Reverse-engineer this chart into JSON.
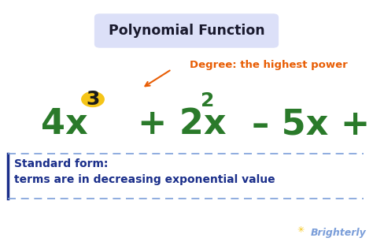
{
  "bg_color": "#ffffff",
  "title_box_color": "#dce0f8",
  "title_text": "Polynomial Function",
  "title_color": "#1a1a2e",
  "degree_label": "Degree: the highest power",
  "degree_color": "#e85d04",
  "formula_color": "#2a7a2a",
  "highlight_circle_color": "#f5c518",
  "highlight_circle_text_color": "#1a1a1a",
  "standard_form_label1": "Standard form:",
  "standard_form_label2": "terms are in decreasing exponential value",
  "standard_form_color": "#1a2e8a",
  "dashed_line_color": "#7b9ed9",
  "border_left_color": "#1a2e8a",
  "watermark_text": "Brighterly",
  "watermark_color": "#7b9ed9",
  "sun_color": "#f5c518"
}
